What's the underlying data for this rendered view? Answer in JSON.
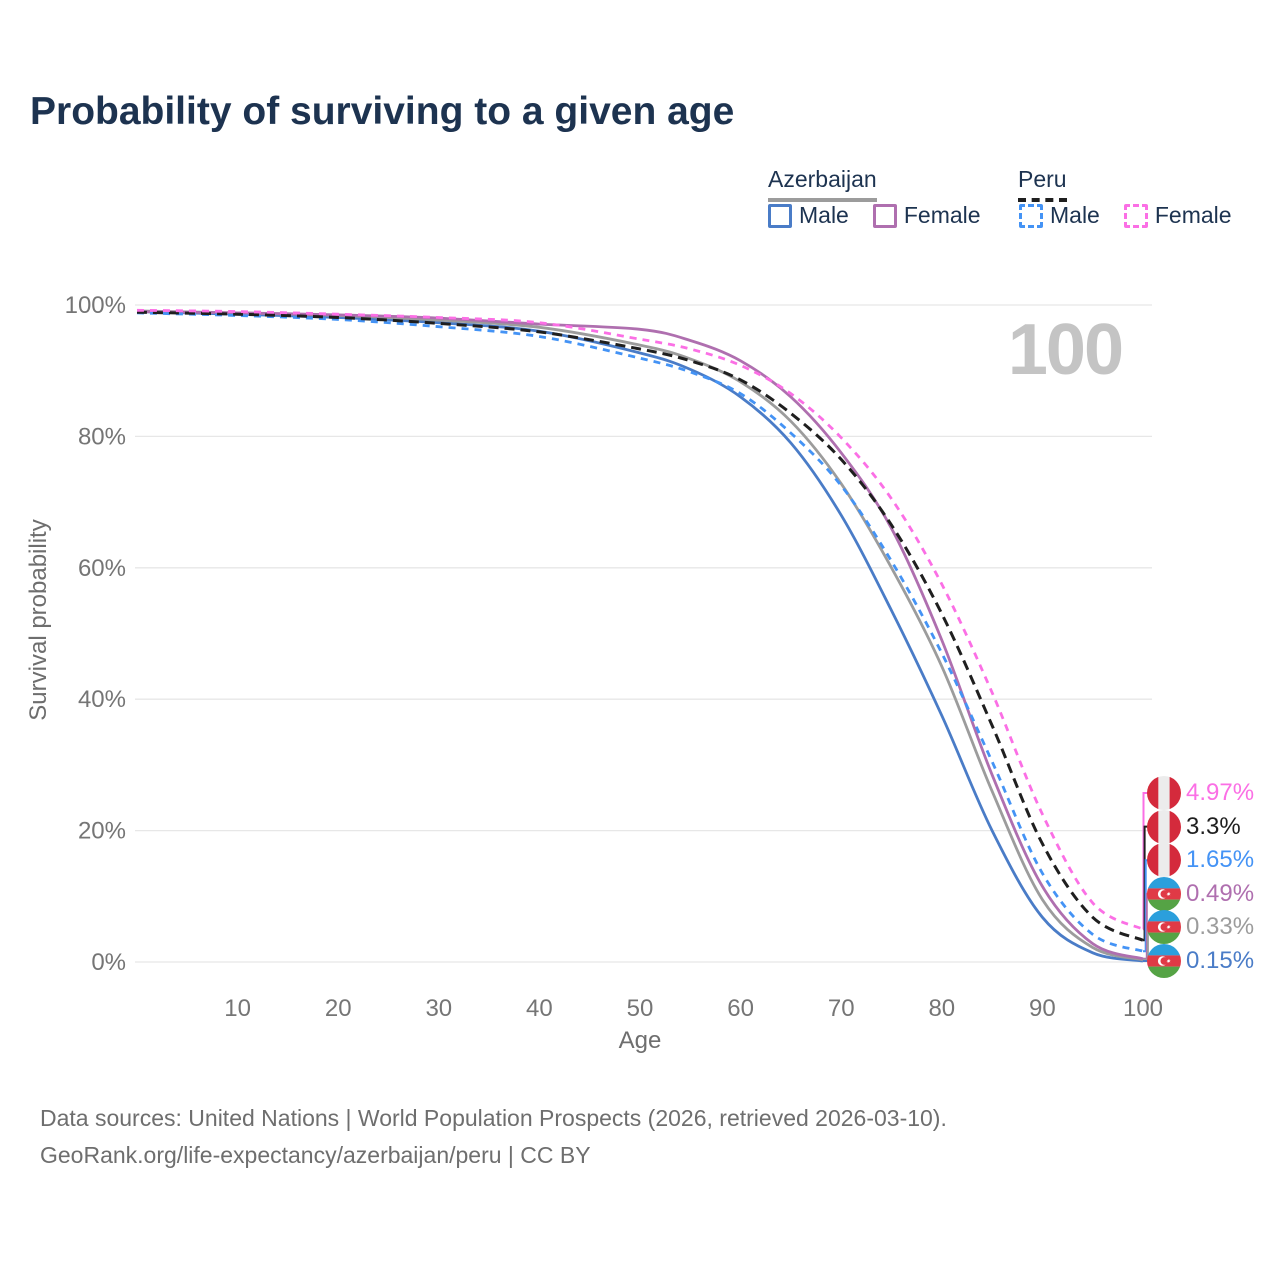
{
  "title": "Probability of surviving to a given age",
  "legend": {
    "groups": [
      {
        "label": "Azerbaijan",
        "underline_color": "#9c9c9c",
        "underline_style": "solid",
        "items": [
          {
            "label": "Male",
            "color": "#4a7cc7",
            "line_style": "solid"
          },
          {
            "label": "Female",
            "color": "#af6faf",
            "line_style": "solid"
          }
        ]
      },
      {
        "label": "Peru",
        "underline_color": "#1f1f1f",
        "underline_style": "dashed",
        "items": [
          {
            "label": "Male",
            "color": "#4493f5",
            "line_style": "dashed"
          },
          {
            "label": "Female",
            "color": "#fb6fe5",
            "line_style": "dashed"
          }
        ]
      }
    ]
  },
  "chart_data": {
    "type": "line",
    "title": "Probability of surviving to a given age",
    "xlabel": "Age",
    "ylabel": "Survival probability",
    "watermark": "100",
    "grid": "horizontal-only",
    "xlim": [
      0,
      100
    ],
    "ylim": [
      0,
      100
    ],
    "x_ticks": [
      {
        "value": 10,
        "label": "10"
      },
      {
        "value": 20,
        "label": "20"
      },
      {
        "value": 30,
        "label": "30"
      },
      {
        "value": 40,
        "label": "40"
      },
      {
        "value": 50,
        "label": "50"
      },
      {
        "value": 60,
        "label": "60"
      },
      {
        "value": 70,
        "label": "70"
      },
      {
        "value": 80,
        "label": "80"
      },
      {
        "value": 90,
        "label": "90"
      },
      {
        "value": 100,
        "label": "100"
      }
    ],
    "y_ticks": [
      {
        "value": 0,
        "label": "0%"
      },
      {
        "value": 20,
        "label": "20%"
      },
      {
        "value": 40,
        "label": "40%"
      },
      {
        "value": 60,
        "label": "60%"
      },
      {
        "value": 80,
        "label": "80%"
      },
      {
        "value": 100,
        "label": "100%"
      }
    ],
    "x": [
      0,
      10,
      20,
      30,
      40,
      50,
      55,
      60,
      65,
      70,
      75,
      80,
      85,
      90,
      95,
      100
    ],
    "series": [
      {
        "name": "Azerbaijan Male",
        "country": "Azerbaijan",
        "group": "Male",
        "color": "#4a7cc7",
        "dash": null,
        "width": 2.8,
        "values": [
          99.0,
          98.6,
          98.1,
          97.3,
          96.0,
          92.7,
          90.2,
          86.0,
          79.0,
          68.0,
          53.5,
          37.5,
          20.0,
          6.8,
          1.4,
          0.15
        ]
      },
      {
        "name": "Azerbaijan Total",
        "country": "Azerbaijan",
        "group": "Total",
        "color": "#9c9c9c",
        "dash": null,
        "width": 2.8,
        "values": [
          99.1,
          98.8,
          98.4,
          97.7,
          96.6,
          93.9,
          91.8,
          88.3,
          82.3,
          72.8,
          60.0,
          45.0,
          26.0,
          9.5,
          2.2,
          0.33
        ]
      },
      {
        "name": "Azerbaijan Female",
        "country": "Azerbaijan",
        "group": "Female",
        "color": "#af6faf",
        "dash": null,
        "width": 2.8,
        "values": [
          99.0,
          98.8,
          98.5,
          98.0,
          97.1,
          96.3,
          94.6,
          91.5,
          86.0,
          77.5,
          66.0,
          49.0,
          28.5,
          11.5,
          2.8,
          0.49
        ]
      },
      {
        "name": "Peru Male",
        "country": "Peru",
        "group": "Male",
        "color": "#4493f5",
        "dash": "7 6",
        "width": 2.8,
        "values": [
          98.8,
          98.4,
          97.8,
          96.7,
          95.2,
          91.9,
          89.8,
          86.5,
          80.5,
          72.5,
          61.0,
          47.0,
          30.5,
          13.5,
          4.2,
          1.65
        ]
      },
      {
        "name": "Peru Total",
        "country": "Peru",
        "group": "Total",
        "color": "#1f1f1f",
        "dash": "10 6",
        "width": 3,
        "values": [
          98.9,
          98.6,
          98.1,
          97.2,
          95.9,
          93.3,
          91.5,
          88.6,
          83.5,
          76.5,
          66.5,
          53.0,
          36.0,
          18.0,
          6.8,
          3.3
        ]
      },
      {
        "name": "Peru Female",
        "country": "Peru",
        "group": "Female",
        "color": "#fb6fe5",
        "dash": "7 6",
        "width": 2.8,
        "values": [
          99.2,
          99.0,
          98.6,
          98.1,
          97.3,
          94.8,
          93.3,
          90.8,
          86.5,
          79.8,
          70.5,
          57.5,
          41.0,
          22.5,
          9.0,
          4.97
        ]
      }
    ],
    "end_labels": [
      {
        "text": "4.97%",
        "value": 4.97,
        "flag": "peru",
        "series": "Peru Female",
        "color": "#fb6fe5"
      },
      {
        "text": "3.3%",
        "value": 3.3,
        "flag": "peru",
        "series": "Peru Total",
        "color": "#1f1f1f"
      },
      {
        "text": "1.65%",
        "value": 1.65,
        "flag": "peru",
        "series": "Peru Male",
        "color": "#4493f5"
      },
      {
        "text": "0.49%",
        "value": 0.49,
        "flag": "azerbaijan",
        "series": "Azerbaijan Female",
        "color": "#af6faf"
      },
      {
        "text": "0.33%",
        "value": 0.33,
        "flag": "azerbaijan",
        "series": "Azerbaijan Total",
        "color": "#9c9c9c"
      },
      {
        "text": "0.15%",
        "value": 0.15,
        "flag": "azerbaijan",
        "series": "Azerbaijan Male",
        "color": "#4a7cc7"
      }
    ],
    "flag_colors": {
      "peru": {
        "red": "#d42a3c",
        "white": "#ececec"
      },
      "azerbaijan": {
        "blue": "#2b9fdc",
        "red": "#e03a46",
        "green": "#55a345"
      }
    },
    "gridline_color": "#e7e7e7"
  },
  "footer": {
    "line1": "Data sources: United Nations | World Population Prospects (2026, retrieved 2026-03-10).",
    "line2": "GeoRank.org/life-expectancy/azerbaijan/peru | CC BY"
  }
}
